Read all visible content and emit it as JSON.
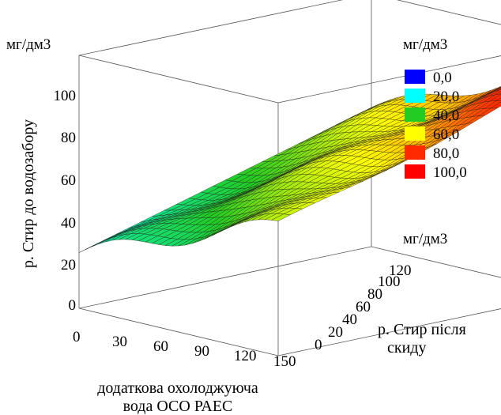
{
  "chart_data": {
    "type": "surface",
    "title": "",
    "xlabel_line1": "додаткова охолоджуюча",
    "xlabel_line2": "вода ОСО РАЕС",
    "ylabel_line1": "р. Стир після",
    "ylabel_line2": "скиду",
    "zlabel": "р. Стир до водозабору",
    "z_unit": "мг/дм3",
    "y_unit": "мг/дм3",
    "x_ticks": [
      "0",
      "30",
      "60",
      "90",
      "120",
      "150"
    ],
    "y_ticks": [
      "0",
      "20",
      "40",
      "60",
      "80",
      "100",
      "120"
    ],
    "z_ticks": [
      "0",
      "20",
      "40",
      "60",
      "80",
      "100"
    ],
    "xlim": [
      0,
      150
    ],
    "ylim": [
      0,
      120
    ],
    "zlim": [
      0,
      100
    ],
    "legend": {
      "title": "мг/дм3",
      "placement": "right",
      "entries": [
        {
          "label": "0,0",
          "color": "#0000ff"
        },
        {
          "label": "20,0",
          "color": "#00ffff"
        },
        {
          "label": "40,0",
          "color": "#22cc22"
        },
        {
          "label": "60,0",
          "color": "#ffff00"
        },
        {
          "label": "80,0",
          "color": "#ff2a00"
        },
        {
          "label": "100,0",
          "color": "#ff0000"
        }
      ]
    },
    "surface_corners": {
      "x0_y0": 22,
      "x150_y0": 52,
      "x0_y120": 55,
      "x150_y120": 88
    }
  }
}
